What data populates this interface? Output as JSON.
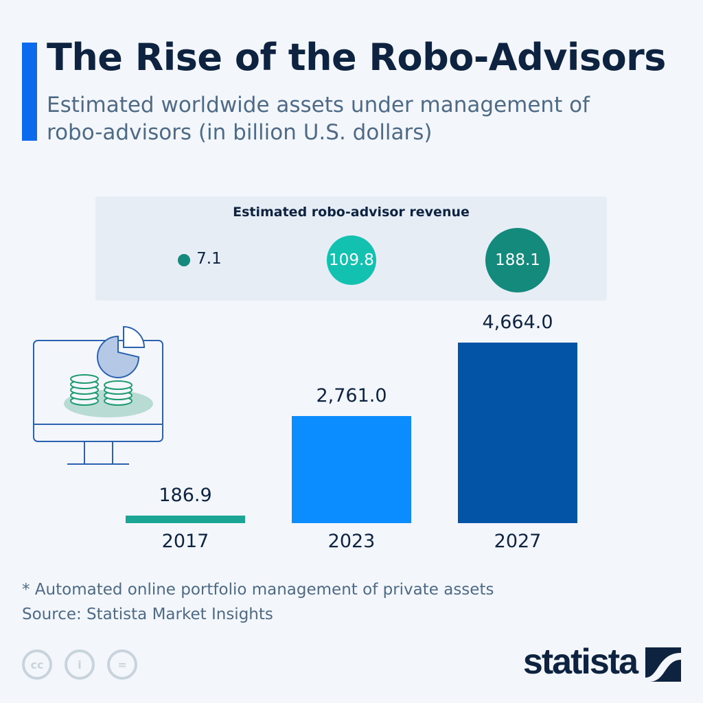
{
  "title": "The Rise of the Robo-Advisors",
  "subtitle": "Estimated worldwide assets under management of robo-advisors (in billion U.S. dollars)",
  "colors": {
    "accent": "#0b6bec",
    "bar_2017": "#1aa594",
    "bar_2023": "#0b8cff",
    "bar_2027": "#0353a6",
    "rev_2017": "#138a7c",
    "rev_2023": "#12c1b0",
    "rev_2027": "#138a7c"
  },
  "chart_data": {
    "type": "bar",
    "title": "The Rise of the Robo-Advisors",
    "categories": [
      "2017",
      "2023",
      "2027"
    ],
    "values": [
      186.9,
      2761.0,
      4664.0
    ],
    "value_labels": [
      "186.9",
      "2,761.0",
      "4,664.0"
    ],
    "ylabel": "",
    "ylim": [
      0,
      4664
    ],
    "grid": false,
    "revenue": {
      "label": "Estimated robo-advisor revenue",
      "type": "bubble",
      "values": [
        7.1,
        109.8,
        188.1
      ],
      "value_labels": [
        "7.1",
        "109.8",
        "188.1"
      ]
    }
  },
  "footnote": "* Automated online portfolio management of private assets",
  "source": "Source: Statista Market Insights",
  "license_icons": [
    "cc-icon",
    "attribution-icon",
    "no-derivatives-icon"
  ],
  "logo": "statista"
}
